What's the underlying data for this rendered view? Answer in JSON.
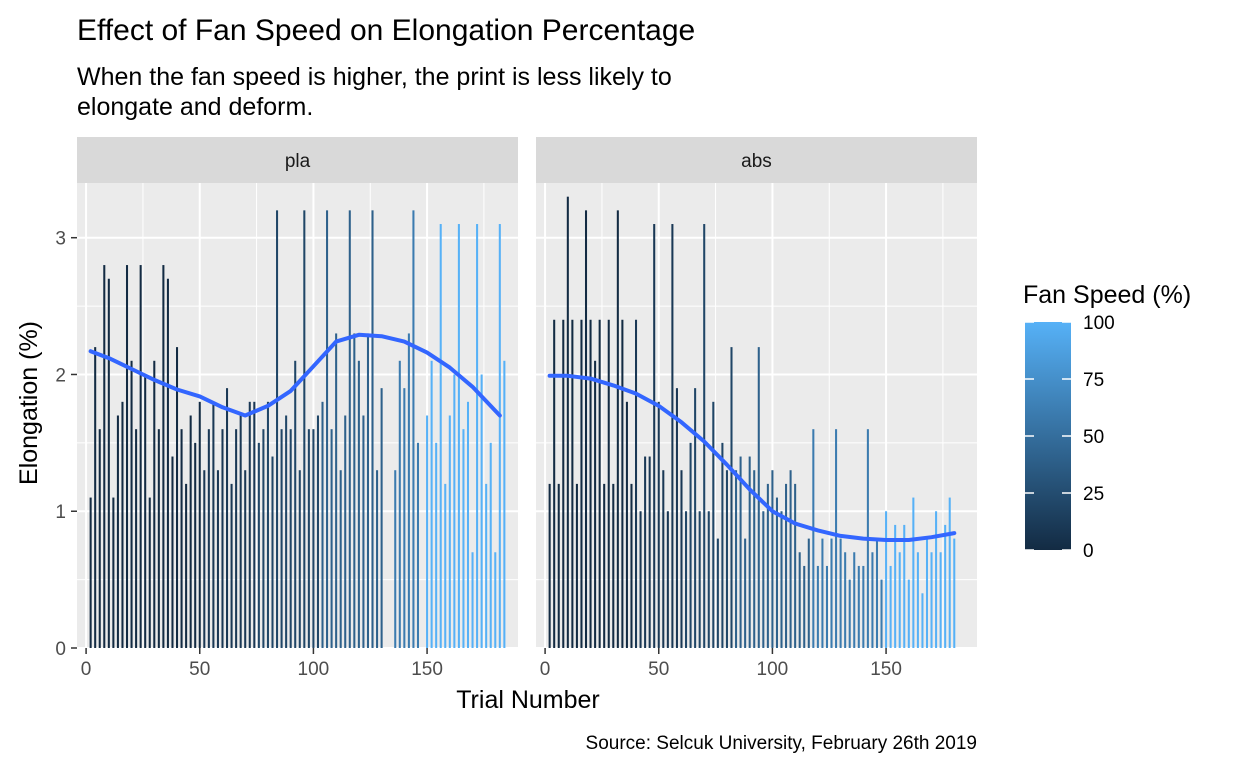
{
  "chart_data": {
    "type": "bar",
    "title": "Effect of Fan Speed on Elongation Percentage",
    "subtitle_lines": [
      "When the fan speed is higher, the print is less likely to",
      "elongate and deform."
    ],
    "xlabel": "Trial Number",
    "ylabel": "Elongation (%)",
    "caption": "Source: Selcuk University, February 26th 2019",
    "xlim": [
      -4,
      190
    ],
    "ylim": [
      0,
      3.4
    ],
    "x_ticks": [
      0,
      50,
      100,
      150
    ],
    "y_ticks": [
      0,
      1,
      2,
      3
    ],
    "grid": true,
    "legend": {
      "title": "Fan Speed (%)",
      "placement": "right",
      "scale": "continuous",
      "range": [
        0,
        100
      ],
      "breaks": [
        0,
        25,
        50,
        75,
        100
      ],
      "low_color": "#132B43",
      "high_color": "#56B1F7"
    },
    "smooth_color": "#3366FF",
    "panels": [
      {
        "strip_label": "pla",
        "bars": [
          {
            "x": 2,
            "y": 1.1,
            "fan": 0
          },
          {
            "x": 4,
            "y": 2.2,
            "fan": 0
          },
          {
            "x": 6,
            "y": 1.6,
            "fan": 0
          },
          {
            "x": 8,
            "y": 2.8,
            "fan": 0
          },
          {
            "x": 10,
            "y": 2.7,
            "fan": 0
          },
          {
            "x": 12,
            "y": 1.1,
            "fan": 0
          },
          {
            "x": 14,
            "y": 1.7,
            "fan": 0
          },
          {
            "x": 16,
            "y": 1.8,
            "fan": 0
          },
          {
            "x": 18,
            "y": 2.8,
            "fan": 0
          },
          {
            "x": 20,
            "y": 2.1,
            "fan": 0
          },
          {
            "x": 22,
            "y": 1.6,
            "fan": 0
          },
          {
            "x": 24,
            "y": 2.8,
            "fan": 0
          },
          {
            "x": 26,
            "y": 2.0,
            "fan": 0
          },
          {
            "x": 28,
            "y": 1.1,
            "fan": 0
          },
          {
            "x": 30,
            "y": 2.1,
            "fan": 0
          },
          {
            "x": 32,
            "y": 1.6,
            "fan": 0
          },
          {
            "x": 34,
            "y": 2.8,
            "fan": 0
          },
          {
            "x": 36,
            "y": 2.7,
            "fan": 0
          },
          {
            "x": 38,
            "y": 1.4,
            "fan": 0
          },
          {
            "x": 40,
            "y": 2.2,
            "fan": 0
          },
          {
            "x": 42,
            "y": 1.6,
            "fan": 0
          },
          {
            "x": 44,
            "y": 1.2,
            "fan": 0
          },
          {
            "x": 46,
            "y": 1.7,
            "fan": 0
          },
          {
            "x": 48,
            "y": 1.5,
            "fan": 0
          },
          {
            "x": 50,
            "y": 1.8,
            "fan": 0
          },
          {
            "x": 52,
            "y": 1.3,
            "fan": 10
          },
          {
            "x": 54,
            "y": 1.6,
            "fan": 10
          },
          {
            "x": 56,
            "y": 1.8,
            "fan": 10
          },
          {
            "x": 58,
            "y": 1.3,
            "fan": 10
          },
          {
            "x": 60,
            "y": 1.6,
            "fan": 10
          },
          {
            "x": 62,
            "y": 1.9,
            "fan": 10
          },
          {
            "x": 64,
            "y": 1.2,
            "fan": 10
          },
          {
            "x": 66,
            "y": 1.6,
            "fan": 10
          },
          {
            "x": 68,
            "y": 1.7,
            "fan": 10
          },
          {
            "x": 70,
            "y": 1.3,
            "fan": 10
          },
          {
            "x": 72,
            "y": 1.8,
            "fan": 10
          },
          {
            "x": 74,
            "y": 1.8,
            "fan": 10
          },
          {
            "x": 76,
            "y": 1.5,
            "fan": 20
          },
          {
            "x": 78,
            "y": 1.6,
            "fan": 20
          },
          {
            "x": 80,
            "y": 1.8,
            "fan": 20
          },
          {
            "x": 82,
            "y": 1.4,
            "fan": 20
          },
          {
            "x": 84,
            "y": 3.2,
            "fan": 20
          },
          {
            "x": 86,
            "y": 1.6,
            "fan": 20
          },
          {
            "x": 88,
            "y": 1.7,
            "fan": 20
          },
          {
            "x": 90,
            "y": 1.6,
            "fan": 20
          },
          {
            "x": 92,
            "y": 2.1,
            "fan": 20
          },
          {
            "x": 94,
            "y": 1.3,
            "fan": 20
          },
          {
            "x": 96,
            "y": 3.2,
            "fan": 20
          },
          {
            "x": 98,
            "y": 1.6,
            "fan": 20
          },
          {
            "x": 100,
            "y": 1.6,
            "fan": 20
          },
          {
            "x": 102,
            "y": 1.7,
            "fan": 20
          },
          {
            "x": 104,
            "y": 1.8,
            "fan": 40
          },
          {
            "x": 106,
            "y": 3.2,
            "fan": 40
          },
          {
            "x": 108,
            "y": 1.6,
            "fan": 40
          },
          {
            "x": 110,
            "y": 2.3,
            "fan": 40
          },
          {
            "x": 112,
            "y": 1.3,
            "fan": 40
          },
          {
            "x": 114,
            "y": 1.7,
            "fan": 40
          },
          {
            "x": 116,
            "y": 3.2,
            "fan": 40
          },
          {
            "x": 118,
            "y": 2.3,
            "fan": 40
          },
          {
            "x": 120,
            "y": 2.1,
            "fan": 40
          },
          {
            "x": 122,
            "y": 1.7,
            "fan": 40
          },
          {
            "x": 124,
            "y": 2.3,
            "fan": 40
          },
          {
            "x": 126,
            "y": 3.2,
            "fan": 40
          },
          {
            "x": 128,
            "y": 1.3,
            "fan": 40
          },
          {
            "x": 130,
            "y": 1.9,
            "fan": 40
          },
          {
            "x": 136,
            "y": 1.3,
            "fan": 60
          },
          {
            "x": 138,
            "y": 2.1,
            "fan": 60
          },
          {
            "x": 140,
            "y": 1.9,
            "fan": 60
          },
          {
            "x": 142,
            "y": 2.3,
            "fan": 60
          },
          {
            "x": 144,
            "y": 3.2,
            "fan": 60
          },
          {
            "x": 146,
            "y": 1.5,
            "fan": 60
          },
          {
            "x": 150,
            "y": 1.7,
            "fan": 100
          },
          {
            "x": 152,
            "y": 2.1,
            "fan": 100
          },
          {
            "x": 154,
            "y": 1.5,
            "fan": 100
          },
          {
            "x": 156,
            "y": 3.1,
            "fan": 100
          },
          {
            "x": 158,
            "y": 1.2,
            "fan": 100
          },
          {
            "x": 160,
            "y": 1.7,
            "fan": 100
          },
          {
            "x": 162,
            "y": 2.0,
            "fan": 100
          },
          {
            "x": 164,
            "y": 3.1,
            "fan": 100
          },
          {
            "x": 166,
            "y": 1.6,
            "fan": 100
          },
          {
            "x": 168,
            "y": 1.8,
            "fan": 100
          },
          {
            "x": 170,
            "y": 0.7,
            "fan": 100
          },
          {
            "x": 172,
            "y": 3.1,
            "fan": 100
          },
          {
            "x": 174,
            "y": 2.0,
            "fan": 100
          },
          {
            "x": 176,
            "y": 1.2,
            "fan": 100
          },
          {
            "x": 178,
            "y": 1.5,
            "fan": 100
          },
          {
            "x": 180,
            "y": 0.7,
            "fan": 100
          },
          {
            "x": 182,
            "y": 3.1,
            "fan": 100
          },
          {
            "x": 184,
            "y": 2.1,
            "fan": 100
          }
        ],
        "smooth": [
          {
            "x": 2,
            "y": 2.17
          },
          {
            "x": 10,
            "y": 2.12
          },
          {
            "x": 20,
            "y": 2.04
          },
          {
            "x": 30,
            "y": 1.96
          },
          {
            "x": 40,
            "y": 1.89
          },
          {
            "x": 50,
            "y": 1.84
          },
          {
            "x": 60,
            "y": 1.76
          },
          {
            "x": 70,
            "y": 1.7
          },
          {
            "x": 80,
            "y": 1.77
          },
          {
            "x": 90,
            "y": 1.88
          },
          {
            "x": 100,
            "y": 2.06
          },
          {
            "x": 110,
            "y": 2.24
          },
          {
            "x": 120,
            "y": 2.29
          },
          {
            "x": 130,
            "y": 2.28
          },
          {
            "x": 140,
            "y": 2.24
          },
          {
            "x": 150,
            "y": 2.16
          },
          {
            "x": 160,
            "y": 2.05
          },
          {
            "x": 170,
            "y": 1.91
          },
          {
            "x": 182,
            "y": 1.7
          }
        ]
      },
      {
        "strip_label": "abs",
        "bars": [
          {
            "x": 2,
            "y": 1.2,
            "fan": 0
          },
          {
            "x": 4,
            "y": 2.4,
            "fan": 0
          },
          {
            "x": 6,
            "y": 1.2,
            "fan": 0
          },
          {
            "x": 8,
            "y": 2.4,
            "fan": 0
          },
          {
            "x": 10,
            "y": 3.3,
            "fan": 0
          },
          {
            "x": 12,
            "y": 2.4,
            "fan": 0
          },
          {
            "x": 14,
            "y": 1.2,
            "fan": 0
          },
          {
            "x": 16,
            "y": 2.4,
            "fan": 0
          },
          {
            "x": 18,
            "y": 3.2,
            "fan": 0
          },
          {
            "x": 20,
            "y": 2.4,
            "fan": 0
          },
          {
            "x": 22,
            "y": 2.1,
            "fan": 0
          },
          {
            "x": 24,
            "y": 2.4,
            "fan": 0
          },
          {
            "x": 26,
            "y": 1.2,
            "fan": 0
          },
          {
            "x": 28,
            "y": 2.4,
            "fan": 0
          },
          {
            "x": 30,
            "y": 1.2,
            "fan": 0
          },
          {
            "x": 32,
            "y": 3.2,
            "fan": 0
          },
          {
            "x": 34,
            "y": 2.4,
            "fan": 0
          },
          {
            "x": 36,
            "y": 1.8,
            "fan": 0
          },
          {
            "x": 38,
            "y": 1.2,
            "fan": 0
          },
          {
            "x": 40,
            "y": 2.4,
            "fan": 10
          },
          {
            "x": 42,
            "y": 1.0,
            "fan": 10
          },
          {
            "x": 44,
            "y": 1.4,
            "fan": 10
          },
          {
            "x": 46,
            "y": 1.4,
            "fan": 10
          },
          {
            "x": 48,
            "y": 3.1,
            "fan": 10
          },
          {
            "x": 50,
            "y": 1.8,
            "fan": 10
          },
          {
            "x": 52,
            "y": 1.3,
            "fan": 10
          },
          {
            "x": 54,
            "y": 1.0,
            "fan": 10
          },
          {
            "x": 56,
            "y": 3.1,
            "fan": 10
          },
          {
            "x": 58,
            "y": 1.9,
            "fan": 10
          },
          {
            "x": 60,
            "y": 1.3,
            "fan": 10
          },
          {
            "x": 62,
            "y": 1.0,
            "fan": 20
          },
          {
            "x": 64,
            "y": 1.5,
            "fan": 20
          },
          {
            "x": 66,
            "y": 1.9,
            "fan": 20
          },
          {
            "x": 68,
            "y": 1.0,
            "fan": 20
          },
          {
            "x": 70,
            "y": 3.1,
            "fan": 20
          },
          {
            "x": 72,
            "y": 1.0,
            "fan": 20
          },
          {
            "x": 74,
            "y": 1.8,
            "fan": 20
          },
          {
            "x": 76,
            "y": 0.8,
            "fan": 20
          },
          {
            "x": 78,
            "y": 1.5,
            "fan": 20
          },
          {
            "x": 80,
            "y": 1.3,
            "fan": 20
          },
          {
            "x": 82,
            "y": 2.2,
            "fan": 20
          },
          {
            "x": 84,
            "y": 1.3,
            "fan": 40
          },
          {
            "x": 86,
            "y": 1.4,
            "fan": 40
          },
          {
            "x": 88,
            "y": 0.8,
            "fan": 40
          },
          {
            "x": 90,
            "y": 1.4,
            "fan": 40
          },
          {
            "x": 92,
            "y": 1.3,
            "fan": 40
          },
          {
            "x": 94,
            "y": 2.2,
            "fan": 40
          },
          {
            "x": 96,
            "y": 1.0,
            "fan": 40
          },
          {
            "x": 98,
            "y": 1.2,
            "fan": 40
          },
          {
            "x": 100,
            "y": 1.3,
            "fan": 40
          },
          {
            "x": 102,
            "y": 1.1,
            "fan": 40
          },
          {
            "x": 104,
            "y": 1.0,
            "fan": 40
          },
          {
            "x": 106,
            "y": 1.2,
            "fan": 40
          },
          {
            "x": 108,
            "y": 1.3,
            "fan": 40
          },
          {
            "x": 110,
            "y": 1.2,
            "fan": 40
          },
          {
            "x": 112,
            "y": 0.7,
            "fan": 40
          },
          {
            "x": 114,
            "y": 0.6,
            "fan": 40
          },
          {
            "x": 116,
            "y": 0.8,
            "fan": 40
          },
          {
            "x": 118,
            "y": 1.6,
            "fan": 60
          },
          {
            "x": 120,
            "y": 0.6,
            "fan": 60
          },
          {
            "x": 122,
            "y": 0.8,
            "fan": 60
          },
          {
            "x": 124,
            "y": 0.6,
            "fan": 60
          },
          {
            "x": 126,
            "y": 0.8,
            "fan": 60
          },
          {
            "x": 128,
            "y": 1.6,
            "fan": 60
          },
          {
            "x": 130,
            "y": 0.8,
            "fan": 60
          },
          {
            "x": 132,
            "y": 0.7,
            "fan": 60
          },
          {
            "x": 134,
            "y": 0.5,
            "fan": 60
          },
          {
            "x": 136,
            "y": 0.7,
            "fan": 60
          },
          {
            "x": 138,
            "y": 0.6,
            "fan": 60
          },
          {
            "x": 140,
            "y": 0.6,
            "fan": 60
          },
          {
            "x": 142,
            "y": 1.6,
            "fan": 60
          },
          {
            "x": 144,
            "y": 0.7,
            "fan": 60
          },
          {
            "x": 146,
            "y": 0.8,
            "fan": 60
          },
          {
            "x": 148,
            "y": 0.5,
            "fan": 60
          },
          {
            "x": 150,
            "y": 1.0,
            "fan": 100
          },
          {
            "x": 152,
            "y": 0.6,
            "fan": 100
          },
          {
            "x": 154,
            "y": 0.9,
            "fan": 100
          },
          {
            "x": 156,
            "y": 0.7,
            "fan": 100
          },
          {
            "x": 158,
            "y": 0.9,
            "fan": 100
          },
          {
            "x": 160,
            "y": 0.5,
            "fan": 100
          },
          {
            "x": 162,
            "y": 1.1,
            "fan": 100
          },
          {
            "x": 164,
            "y": 0.7,
            "fan": 100
          },
          {
            "x": 166,
            "y": 0.4,
            "fan": 100
          },
          {
            "x": 168,
            "y": 0.8,
            "fan": 100
          },
          {
            "x": 170,
            "y": 0.7,
            "fan": 100
          },
          {
            "x": 172,
            "y": 1.0,
            "fan": 100
          },
          {
            "x": 174,
            "y": 0.7,
            "fan": 100
          },
          {
            "x": 176,
            "y": 0.9,
            "fan": 100
          },
          {
            "x": 178,
            "y": 1.1,
            "fan": 100
          },
          {
            "x": 180,
            "y": 0.8,
            "fan": 100
          }
        ],
        "smooth": [
          {
            "x": 2,
            "y": 1.99
          },
          {
            "x": 10,
            "y": 1.99
          },
          {
            "x": 20,
            "y": 1.97
          },
          {
            "x": 30,
            "y": 1.92
          },
          {
            "x": 40,
            "y": 1.86
          },
          {
            "x": 50,
            "y": 1.77
          },
          {
            "x": 60,
            "y": 1.65
          },
          {
            "x": 70,
            "y": 1.51
          },
          {
            "x": 80,
            "y": 1.34
          },
          {
            "x": 90,
            "y": 1.16
          },
          {
            "x": 100,
            "y": 1.0
          },
          {
            "x": 110,
            "y": 0.91
          },
          {
            "x": 120,
            "y": 0.86
          },
          {
            "x": 130,
            "y": 0.82
          },
          {
            "x": 140,
            "y": 0.8
          },
          {
            "x": 150,
            "y": 0.79
          },
          {
            "x": 160,
            "y": 0.79
          },
          {
            "x": 170,
            "y": 0.81
          },
          {
            "x": 180,
            "y": 0.84
          }
        ]
      }
    ]
  }
}
